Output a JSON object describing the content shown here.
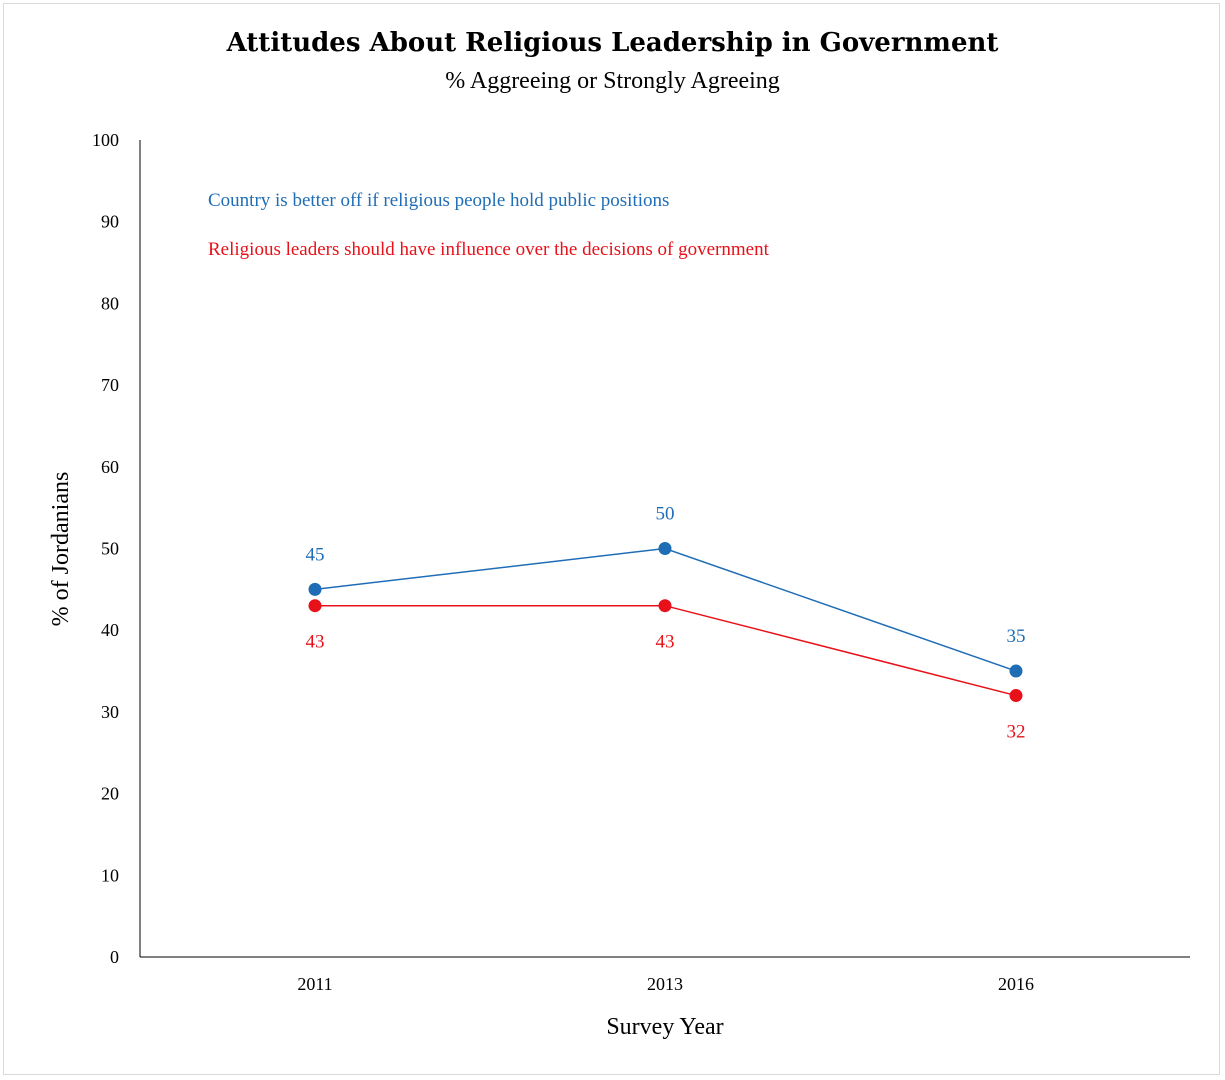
{
  "chart_data": {
    "type": "line",
    "title": "Attitudes About Religious Leadership in Government",
    "subtitle": "% Aggreeing or Strongly Agreeing",
    "xlabel": "Survey Year",
    "ylabel": "% of Jordanians",
    "categories": [
      "2011",
      "2013",
      "2016"
    ],
    "ylim": [
      0,
      100
    ],
    "yticks": [
      "0",
      "10",
      "20",
      "30",
      "40",
      "50",
      "60",
      "70",
      "80",
      "90",
      "100"
    ],
    "grid": false,
    "legend_placement": "top-left",
    "series": [
      {
        "name": "Country is better off if religious people hold public positions",
        "values": [
          45,
          50,
          35
        ],
        "labels": [
          "45",
          "50",
          "35"
        ],
        "color": "#1f6db5"
      },
      {
        "name": "Religious leaders should have influence over the decisions of government",
        "values": [
          43,
          43,
          32
        ],
        "labels": [
          "43",
          "43",
          "32"
        ],
        "color": "#e8111a"
      }
    ]
  }
}
